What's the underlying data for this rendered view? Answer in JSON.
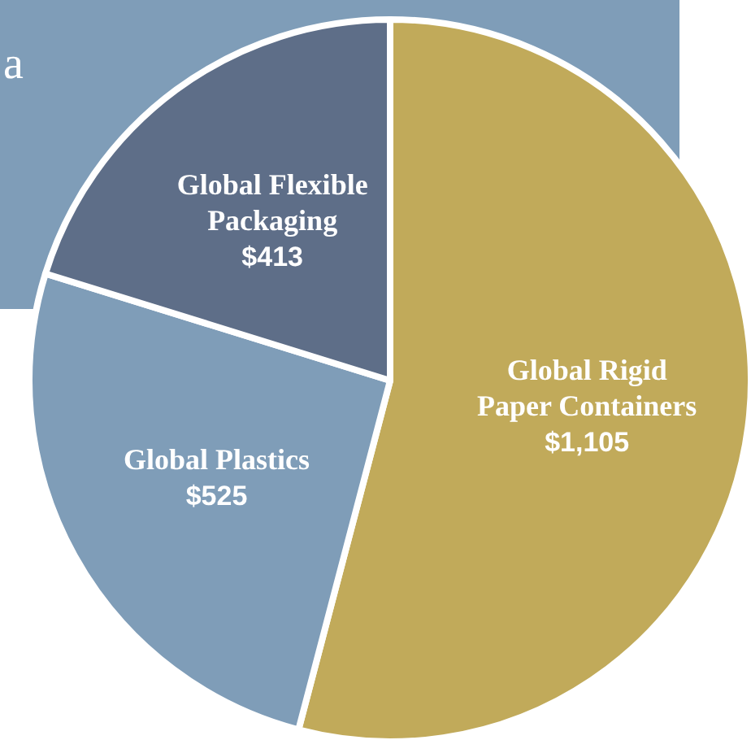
{
  "chart_data": {
    "type": "pie",
    "categories": [
      "Global Rigid Paper Containers",
      "Global Plastics",
      "Global Flexible Packaging"
    ],
    "values": [
      1105,
      525,
      413
    ],
    "value_labels": [
      "$1,105",
      "$525",
      "$413"
    ],
    "colors": [
      "#c1aa5a",
      "#7f9db8",
      "#5e6e88"
    ],
    "annotations": [
      "a"
    ]
  }
}
